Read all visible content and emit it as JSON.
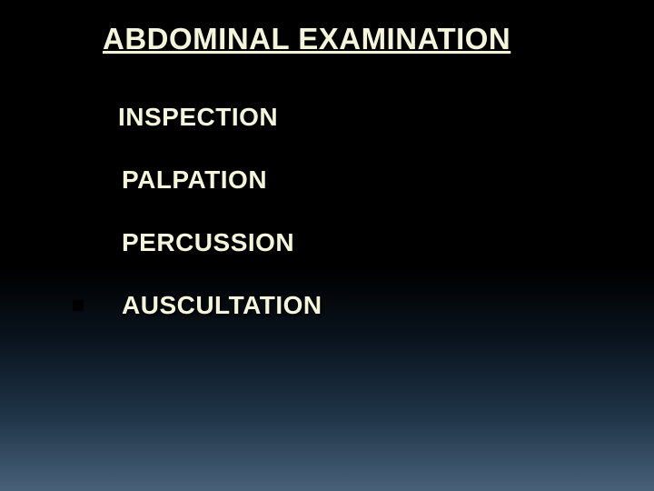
{
  "slide": {
    "title": "ABDOMINAL EXAMINATION",
    "items": [
      {
        "label": "INSPECTION"
      },
      {
        "label": "PALPATION"
      },
      {
        "label": "PERCUSSION"
      },
      {
        "label": "AUSCULTATION"
      }
    ],
    "style": {
      "title_color": "#f5f5dc",
      "title_fontsize": 33,
      "item_color": "#f5f5dc",
      "item_fontsize": 28,
      "bullet_color": "#000000",
      "background_gradient": [
        "#000000",
        "#000000",
        "#0a1520",
        "#203548",
        "#48627a"
      ]
    }
  }
}
